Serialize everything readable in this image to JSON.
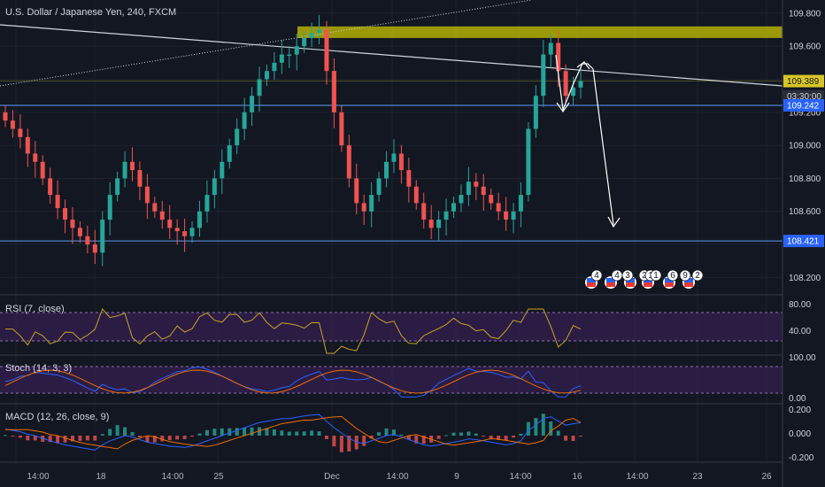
{
  "header": {
    "title": "U.S. Dollar / Japanese Yen, 240, FXCM"
  },
  "colors": {
    "up": "#26a69a",
    "down": "#ef5350",
    "bg": "#131722",
    "grid": "#1e222d",
    "zone": "#c9c500",
    "hline": "#5b9cf6",
    "trend": "#d1d4dc",
    "rsi": "#c9a227",
    "stochK": "#2962ff",
    "stochD": "#ef6c00",
    "macd": "#2962ff",
    "signal": "#ef6c00",
    "band": "#3c1f5a"
  },
  "price_axis": {
    "labels": [
      "109.800",
      "109.600",
      "109.200",
      "109.000",
      "108.800",
      "108.600",
      "108.200"
    ]
  },
  "price_tags": [
    {
      "text": "109.389",
      "bg": "#d8c626",
      "fg": "#131722"
    },
    {
      "text": "03:30:00",
      "bg": "#2a2e39",
      "fg": "#d1d4dc"
    },
    {
      "text": "109.242",
      "bg": "#2962ff",
      "fg": "#ffffff"
    },
    {
      "text": "108.421",
      "bg": "#2962ff",
      "fg": "#ffffff"
    }
  ],
  "time_axis": {
    "labels": [
      "14:00",
      "18",
      "14:00",
      "25",
      "Dec",
      "14:00",
      "9",
      "14:00",
      "16",
      "14:00",
      "23",
      "26"
    ]
  },
  "events": {
    "labels": [
      "4",
      "4",
      "3",
      "2",
      "1",
      "1",
      "6",
      "9",
      "2"
    ]
  },
  "indicators": {
    "rsi": {
      "title": "RSI (7, close)",
      "levels": [
        "80.00",
        "40.00"
      ]
    },
    "stoch": {
      "title": "Stoch (14, 3, 3)",
      "levels": [
        "100.00",
        "0.00"
      ]
    },
    "macd": {
      "title": "MACD (12, 26, close, 9)",
      "levels": [
        "0.200",
        "0.000",
        "-0.200"
      ]
    }
  },
  "chart_data": {
    "type": "candlestick",
    "symbol": "USDJPY",
    "timeframe": "240",
    "ylim": [
      108.1,
      109.88
    ],
    "ohlc_close": [
      109.15,
      109.1,
      109.05,
      108.95,
      108.9,
      108.8,
      108.7,
      108.62,
      108.55,
      108.5,
      108.45,
      108.4,
      108.35,
      108.55,
      108.7,
      108.8,
      108.9,
      108.85,
      108.75,
      108.65,
      108.6,
      108.55,
      108.5,
      108.48,
      108.45,
      108.5,
      108.6,
      108.7,
      108.8,
      108.9,
      109.0,
      109.1,
      109.2,
      109.3,
      109.4,
      109.45,
      109.5,
      109.55,
      109.55,
      109.6,
      109.65,
      109.68,
      109.7,
      109.45,
      109.2,
      109.0,
      108.8,
      108.65,
      108.6,
      108.7,
      108.8,
      108.9,
      108.95,
      108.85,
      108.75,
      108.65,
      108.55,
      108.5,
      108.55,
      108.6,
      108.65,
      108.7,
      108.78,
      108.75,
      108.7,
      108.65,
      108.6,
      108.55,
      108.6,
      108.7,
      109.1,
      109.3,
      109.55,
      109.62,
      109.45,
      109.3,
      109.35,
      109.39
    ],
    "horizontal_levels": [
      109.242,
      108.421
    ],
    "resistance_zone": [
      109.65,
      109.72
    ],
    "last_price": 109.389,
    "rsi_levels": [
      80,
      40
    ],
    "stoch_levels": [
      100,
      0
    ],
    "macd_axis": [
      0.2,
      0.0,
      -0.2
    ]
  }
}
